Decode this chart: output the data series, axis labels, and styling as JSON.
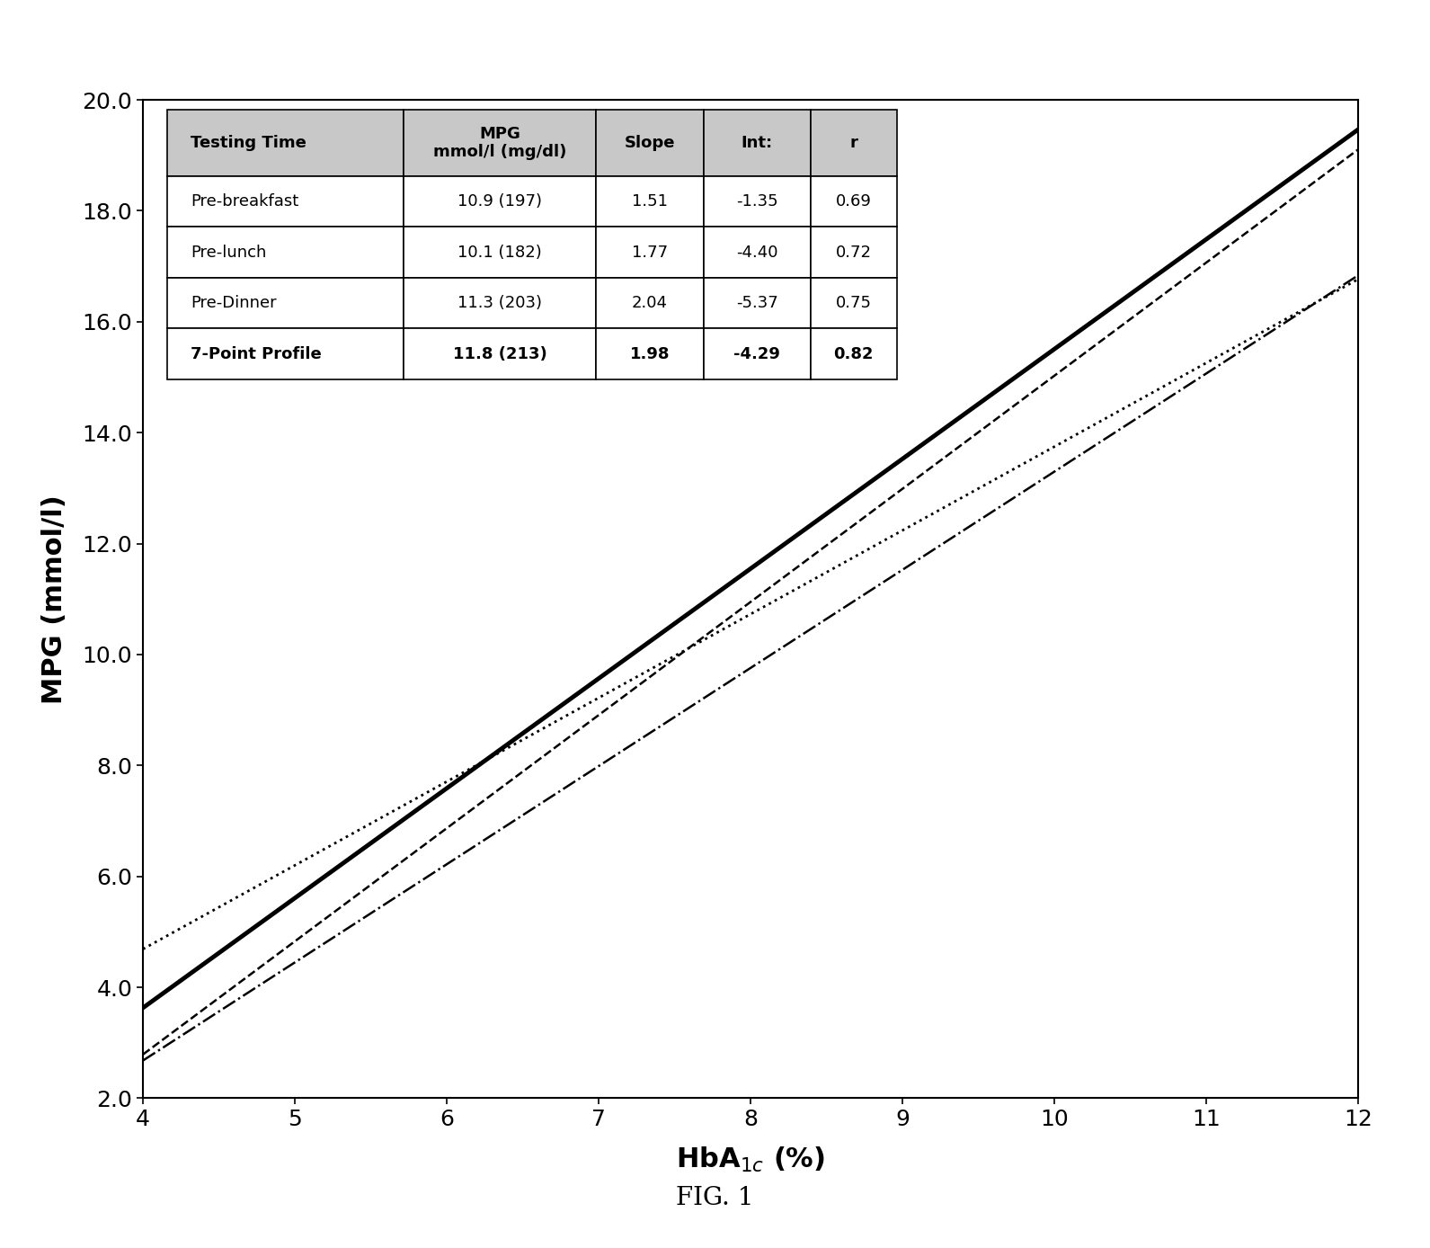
{
  "xlabel": "HbA$_{1c}$ (%)",
  "ylabel": "MPG (mmol/l)",
  "xlim": [
    4,
    12
  ],
  "ylim": [
    2.0,
    20.0
  ],
  "xticks": [
    4,
    5,
    6,
    7,
    8,
    9,
    10,
    11,
    12
  ],
  "yticks": [
    2.0,
    4.0,
    6.0,
    8.0,
    10.0,
    12.0,
    14.0,
    16.0,
    18.0,
    20.0
  ],
  "lines": [
    {
      "label": "7-Point Profile",
      "slope": 1.98,
      "intercept": -4.29,
      "style": "-",
      "color": "black",
      "linewidth": 3.5
    },
    {
      "label": "Pre-Dinner",
      "slope": 2.04,
      "intercept": -5.37,
      "style": "--",
      "color": "black",
      "linewidth": 1.8
    },
    {
      "label": "Pre-lunch",
      "slope": 1.77,
      "intercept": -4.4,
      "style": "-.",
      "color": "black",
      "linewidth": 1.8
    },
    {
      "label": "Pre-breakfast",
      "slope": 1.51,
      "intercept": -1.35,
      "style": ":",
      "color": "black",
      "linewidth": 2.0
    }
  ],
  "table": {
    "col_headers": [
      "Testing Time",
      "MPG\nmmol/l (mg/dl)",
      "Slope",
      "Int:",
      "r"
    ],
    "rows": [
      [
        "Pre-breakfast",
        "10.9 (197)",
        "1.51",
        "-1.35",
        "0.69"
      ],
      [
        "Pre-lunch",
        "10.1 (182)",
        "1.77",
        "-4.40",
        "0.72"
      ],
      [
        "Pre-Dinner",
        "11.3 (203)",
        "2.04",
        "-5.37",
        "0.75"
      ],
      [
        "7-Point Profile",
        "11.8 (213)",
        "1.98",
        "-4.29",
        "0.82"
      ]
    ]
  },
  "background_color": "#ffffff",
  "fig_caption": "FIG. 1",
  "header_color": "#c8c8c8",
  "table_font_size": 13,
  "header_font_size": 13
}
